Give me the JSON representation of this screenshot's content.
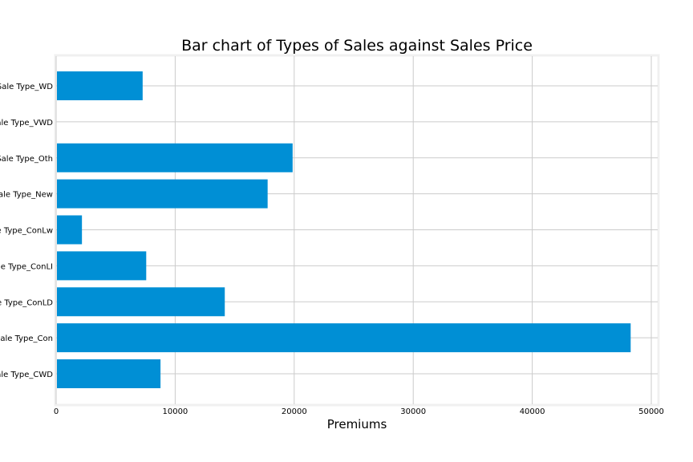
{
  "chart_data": {
    "type": "bar",
    "orientation": "horizontal",
    "title": "Bar chart of Types of Sales against Sales Price",
    "xlabel": "Premiums",
    "ylabel": "",
    "categories": [
      "Sale Type_CWD",
      "Sale Type_Con",
      "Sale Type_ConLD",
      "Sale Type_ConLI",
      "Sale Type_ConLw",
      "Sale Type_New",
      "Sale Type_Oth",
      "Sale Type_VWD",
      "Sale Type_WD"
    ],
    "values": [
      8700,
      48200,
      14100,
      7500,
      2100,
      17700,
      19800,
      0,
      7200
    ],
    "xlim": [
      0,
      50500
    ],
    "xticks": [
      0,
      10000,
      20000,
      30000,
      40000,
      50000
    ],
    "xtick_labels": [
      "0",
      "10000",
      "20000",
      "30000",
      "40000",
      "50000"
    ],
    "grid": true,
    "bar_color": "#008fd5",
    "grid_color": "#cbcbcb",
    "frame_color": "#f0f0f0"
  }
}
